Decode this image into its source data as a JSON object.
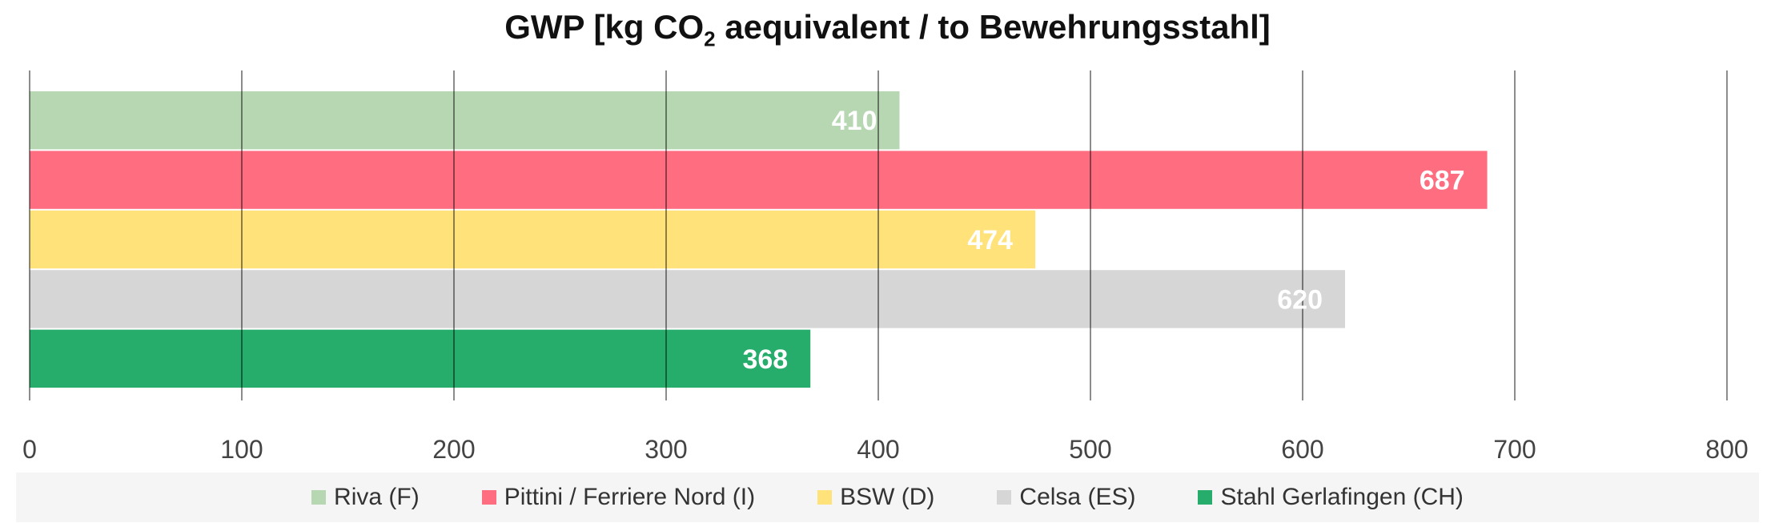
{
  "chart_data": {
    "type": "bar",
    "orientation": "horizontal",
    "title_main": "GWP [kg CO",
    "title_sub": "2",
    "title_rest": " aequivalent / to Bewehrungsstahl]",
    "xlim": [
      0,
      800
    ],
    "xticks": [
      "0",
      "100",
      "200",
      "300",
      "400",
      "500",
      "600",
      "700",
      "800"
    ],
    "grid": true,
    "legend_position": "bottom",
    "series": [
      {
        "name": "Riva (F)",
        "value": 410,
        "color": "#b7d7b3"
      },
      {
        "name": "Pittini / Ferriere Nord (I)",
        "value": 687,
        "color": "#fe6d80"
      },
      {
        "name": "BSW (D)",
        "value": 474,
        "color": "#ffe27a"
      },
      {
        "name": "Celsa (ES)",
        "value": 620,
        "color": "#d6d6d6"
      },
      {
        "name": "Stahl Gerlafingen (CH)",
        "value": 368,
        "color": "#26ac6b"
      }
    ]
  }
}
